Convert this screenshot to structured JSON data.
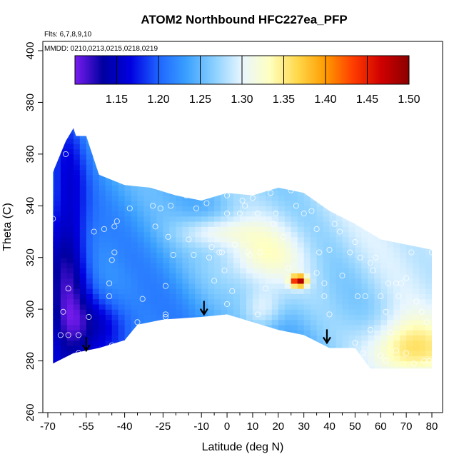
{
  "chart_data": {
    "type": "heatmap",
    "title": "ATOM2 Northbound HFC227ea_PFP",
    "notes": [
      "Flts: 6,7,8,9,10",
      "MMDD: 0210,0213,0215,0218,0219"
    ],
    "xlabel": "Latitude (deg N)",
    "ylabel": "Theta (C)",
    "xlim": [
      -70,
      80
    ],
    "ylim": [
      260,
      400
    ],
    "x_ticks": [
      -70,
      -55,
      -40,
      -25,
      -10,
      0,
      10,
      20,
      30,
      40,
      50,
      60,
      70,
      80
    ],
    "x_tick_labels": [
      "-70",
      "-55",
      "-40",
      "-25",
      "-10",
      "0",
      "10",
      "20",
      "30",
      "40",
      "50",
      "60",
      "70",
      "80"
    ],
    "y_ticks": [
      260,
      280,
      300,
      320,
      340,
      360,
      380,
      400
    ],
    "y_tick_labels": [
      "260",
      "280",
      "300",
      "320",
      "340",
      "360",
      "380",
      "400"
    ],
    "colorbar": {
      "min": 1.1,
      "max": 1.5,
      "ticks": [
        1.15,
        1.2,
        1.25,
        1.3,
        1.35,
        1.4,
        1.45,
        1.5
      ],
      "tick_labels": [
        "1.15",
        "1.20",
        "1.25",
        "1.30",
        "1.35",
        "1.40",
        "1.45",
        "1.50"
      ],
      "stops": [
        "#7a1cf0",
        "#0000a0",
        "#0000e0",
        "#1e64ff",
        "#3aa0ff",
        "#8ad0ff",
        "#e8f6ff",
        "#ffffc0",
        "#ffd84a",
        "#ff9a00",
        "#ff3c00",
        "#d00000",
        "#8a0000"
      ]
    },
    "domain_top": [
      [
        -68,
        353
      ],
      [
        -63,
        365
      ],
      [
        -60,
        370
      ],
      [
        -59,
        367
      ],
      [
        -55,
        367
      ],
      [
        -50,
        352
      ],
      [
        -40,
        348
      ],
      [
        -30,
        347
      ],
      [
        -20,
        344
      ],
      [
        -10,
        342
      ],
      [
        0,
        345
      ],
      [
        10,
        344
      ],
      [
        20,
        347
      ],
      [
        30,
        345
      ],
      [
        40,
        338
      ],
      [
        50,
        333
      ],
      [
        60,
        327
      ],
      [
        70,
        325
      ],
      [
        80,
        323
      ]
    ],
    "domain_bottom": [
      [
        80,
        277
      ],
      [
        56,
        277
      ],
      [
        50,
        285
      ],
      [
        40,
        285
      ],
      [
        30,
        290
      ],
      [
        20,
        292
      ],
      [
        10,
        295
      ],
      [
        0,
        298
      ],
      [
        -10,
        297
      ],
      [
        -25,
        296
      ],
      [
        -35,
        294
      ],
      [
        -40,
        288
      ],
      [
        -50,
        285
      ],
      [
        -60,
        283
      ],
      [
        -68,
        279
      ]
    ],
    "data_points": [
      {
        "lat": -63,
        "theta": 360
      },
      {
        "lat": -68,
        "theta": 335
      },
      {
        "lat": -62,
        "theta": 308
      },
      {
        "lat": -64,
        "theta": 299
      },
      {
        "lat": -62,
        "theta": 290
      },
      {
        "lat": -58,
        "theta": 290
      },
      {
        "lat": -65,
        "theta": 290
      },
      {
        "lat": -58,
        "theta": 283
      },
      {
        "lat": -54,
        "theta": 297
      },
      {
        "lat": -48,
        "theta": 331
      },
      {
        "lat": -52,
        "theta": 330
      },
      {
        "lat": -44,
        "theta": 332
      },
      {
        "lat": -43,
        "theta": 334
      },
      {
        "lat": -44,
        "theta": 322
      },
      {
        "lat": -45,
        "theta": 319
      },
      {
        "lat": -46,
        "theta": 310
      },
      {
        "lat": -46,
        "theta": 305
      },
      {
        "lat": -38,
        "theta": 339
      },
      {
        "lat": -45,
        "theta": 286
      },
      {
        "lat": -35,
        "theta": 295
      },
      {
        "lat": -33,
        "theta": 304
      },
      {
        "lat": -29,
        "theta": 340
      },
      {
        "lat": -26,
        "theta": 339
      },
      {
        "lat": -22,
        "theta": 340
      },
      {
        "lat": -28,
        "theta": 332
      },
      {
        "lat": -23,
        "theta": 328
      },
      {
        "lat": -21,
        "theta": 321
      },
      {
        "lat": -24,
        "theta": 309
      },
      {
        "lat": -24,
        "theta": 298
      },
      {
        "lat": -24,
        "theta": 297
      },
      {
        "lat": -16,
        "theta": 344
      },
      {
        "lat": -14,
        "theta": 345
      },
      {
        "lat": -12,
        "theta": 339
      },
      {
        "lat": -8,
        "theta": 341
      },
      {
        "lat": -15,
        "theta": 327
      },
      {
        "lat": -13,
        "theta": 321
      },
      {
        "lat": -9,
        "theta": 348
      },
      {
        "lat": -7,
        "theta": 320
      },
      {
        "lat": -6,
        "theta": 324
      },
      {
        "lat": -5,
        "theta": 311
      },
      {
        "lat": -3,
        "theta": 322
      },
      {
        "lat": -2,
        "theta": 322
      },
      {
        "lat": -1,
        "theta": 315
      },
      {
        "lat": 0,
        "theta": 302
      },
      {
        "lat": 0,
        "theta": 344
      },
      {
        "lat": 0,
        "theta": 337
      },
      {
        "lat": 2,
        "theta": 307
      },
      {
        "lat": 3,
        "theta": 325
      },
      {
        "lat": 5,
        "theta": 337
      },
      {
        "lat": 6,
        "theta": 342
      },
      {
        "lat": 7,
        "theta": 340
      },
      {
        "lat": 8,
        "theta": 322
      },
      {
        "lat": 9,
        "theta": 321
      },
      {
        "lat": 10,
        "theta": 343
      },
      {
        "lat": 12,
        "theta": 337
      },
      {
        "lat": 13,
        "theta": 322
      },
      {
        "lat": 12,
        "theta": 298
      },
      {
        "lat": 15,
        "theta": 308
      },
      {
        "lat": 17,
        "theta": 345
      },
      {
        "lat": 19,
        "theta": 337
      },
      {
        "lat": 18,
        "theta": 333
      },
      {
        "lat": 22,
        "theta": 328
      },
      {
        "lat": 25,
        "theta": 346
      },
      {
        "lat": 27,
        "theta": 340
      },
      {
        "lat": 30,
        "theta": 337
      },
      {
        "lat": 24,
        "theta": 316
      },
      {
        "lat": 33,
        "theta": 338
      },
      {
        "lat": 35,
        "theta": 331
      },
      {
        "lat": 36,
        "theta": 322
      },
      {
        "lat": 35,
        "theta": 314
      },
      {
        "lat": 38,
        "theta": 310
      },
      {
        "lat": 38,
        "theta": 305
      },
      {
        "lat": 40,
        "theta": 323
      },
      {
        "lat": 42,
        "theta": 333
      },
      {
        "lat": 44,
        "theta": 330
      },
      {
        "lat": 45,
        "theta": 313
      },
      {
        "lat": 48,
        "theta": 322
      },
      {
        "lat": 50,
        "theta": 326
      },
      {
        "lat": 52,
        "theta": 320
      },
      {
        "lat": 51,
        "theta": 305
      },
      {
        "lat": 54,
        "theta": 305
      },
      {
        "lat": 56,
        "theta": 318
      },
      {
        "lat": 57,
        "theta": 315
      },
      {
        "lat": 58,
        "theta": 320
      },
      {
        "lat": 60,
        "theta": 305
      },
      {
        "lat": 62,
        "theta": 299
      },
      {
        "lat": 63,
        "theta": 310
      },
      {
        "lat": 66,
        "theta": 310
      },
      {
        "lat": 67,
        "theta": 305
      },
      {
        "lat": 68,
        "theta": 310
      },
      {
        "lat": 70,
        "theta": 312
      },
      {
        "lat": 72,
        "theta": 322
      },
      {
        "lat": 74,
        "theta": 303
      },
      {
        "lat": 76,
        "theta": 299
      },
      {
        "lat": 78,
        "theta": 295
      },
      {
        "lat": 80,
        "theta": 322
      },
      {
        "lat": 60,
        "theta": 282
      },
      {
        "lat": 64,
        "theta": 291
      },
      {
        "lat": 66,
        "theta": 284
      },
      {
        "lat": 62,
        "theta": 280
      },
      {
        "lat": 70,
        "theta": 283
      },
      {
        "lat": 73,
        "theta": 279
      },
      {
        "lat": 77,
        "theta": 280
      },
      {
        "lat": 79,
        "theta": 280
      },
      {
        "lat": 40,
        "theta": 298
      },
      {
        "lat": 50,
        "theta": 287
      },
      {
        "lat": 53,
        "theta": 283
      },
      {
        "lat": 56,
        "theta": 292
      }
    ],
    "arrows": [
      {
        "lat": -55,
        "theta": 287
      },
      {
        "lat": -9,
        "theta": 301
      },
      {
        "lat": 39,
        "theta": 290
      }
    ]
  }
}
